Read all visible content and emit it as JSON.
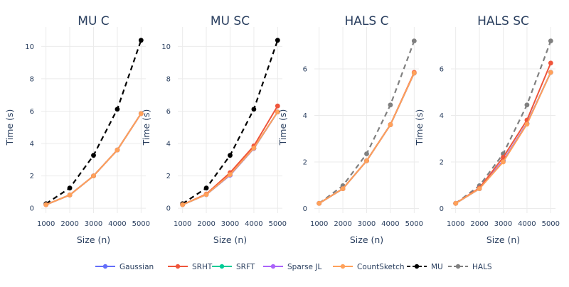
{
  "chart_data": [
    {
      "type": "line",
      "title": "MU C",
      "xlabel": "Size (n)",
      "ylabel": "Time (s)",
      "x": [
        1000,
        2000,
        3000,
        4000,
        5000
      ],
      "xticks": [
        "1000",
        "2000",
        "3000",
        "4000",
        "5000"
      ],
      "yticks": [
        "0",
        "2",
        "4",
        "6",
        "8",
        "10"
      ],
      "xlim": [
        800,
        5200
      ],
      "ylim": [
        -0.3,
        11.2
      ],
      "grid": true,
      "series": [
        {
          "name": "Gaussian",
          "values": [
            0.22,
            0.82,
            2.0,
            3.6,
            5.85
          ]
        },
        {
          "name": "SRHT",
          "values": [
            0.22,
            0.82,
            2.0,
            3.6,
            5.85
          ]
        },
        {
          "name": "SRFT",
          "values": [
            0.22,
            0.82,
            2.0,
            3.6,
            5.85
          ]
        },
        {
          "name": "Sparse JL",
          "values": [
            0.22,
            0.82,
            2.0,
            3.6,
            5.85
          ]
        },
        {
          "name": "CountSketch",
          "values": [
            0.22,
            0.82,
            2.0,
            3.6,
            5.85
          ]
        },
        {
          "name": "MU",
          "values": [
            0.28,
            1.25,
            3.27,
            6.12,
            10.38
          ]
        }
      ]
    },
    {
      "type": "line",
      "title": "MU SC",
      "xlabel": "Size (n)",
      "ylabel": "Time (s)",
      "x": [
        1000,
        2000,
        3000,
        4000,
        5000
      ],
      "xticks": [
        "1000",
        "2000",
        "3000",
        "4000",
        "5000"
      ],
      "yticks": [
        "0",
        "2",
        "4",
        "6",
        "8",
        "10"
      ],
      "xlim": [
        800,
        5200
      ],
      "ylim": [
        -0.3,
        11.2
      ],
      "grid": true,
      "series": [
        {
          "name": "Gaussian",
          "values": [
            0.22,
            0.85,
            2.05,
            3.7,
            5.95
          ]
        },
        {
          "name": "SRHT",
          "values": [
            0.22,
            0.88,
            2.2,
            3.85,
            6.32
          ]
        },
        {
          "name": "SRFT",
          "values": [
            0.22,
            0.85,
            2.05,
            3.7,
            5.95
          ]
        },
        {
          "name": "Sparse JL",
          "values": [
            0.22,
            0.85,
            2.05,
            3.7,
            5.95
          ]
        },
        {
          "name": "CountSketch",
          "values": [
            0.22,
            0.85,
            2.08,
            3.72,
            5.95
          ]
        },
        {
          "name": "MU",
          "values": [
            0.28,
            1.25,
            3.27,
            6.12,
            10.38
          ]
        }
      ]
    },
    {
      "type": "line",
      "title": "HALS C",
      "xlabel": "Size (n)",
      "ylabel": "Time (s)",
      "x": [
        1000,
        2000,
        3000,
        4000,
        5000
      ],
      "xticks": [
        "1000",
        "2000",
        "3000",
        "4000",
        "5000"
      ],
      "yticks": [
        "0",
        "2",
        "4",
        "6"
      ],
      "xlim": [
        800,
        5200
      ],
      "ylim": [
        -0.2,
        7.8
      ],
      "grid": true,
      "series": [
        {
          "name": "Gaussian",
          "values": [
            0.22,
            0.85,
            2.05,
            3.6,
            5.82
          ]
        },
        {
          "name": "SRHT",
          "values": [
            0.22,
            0.85,
            2.05,
            3.6,
            5.85
          ]
        },
        {
          "name": "SRFT",
          "values": [
            0.22,
            0.85,
            2.05,
            3.6,
            5.82
          ]
        },
        {
          "name": "Sparse JL",
          "values": [
            0.22,
            0.85,
            2.05,
            3.6,
            5.82
          ]
        },
        {
          "name": "CountSketch",
          "values": [
            0.22,
            0.85,
            2.05,
            3.6,
            5.82
          ]
        },
        {
          "name": "HALS",
          "values": [
            0.22,
            0.98,
            2.35,
            4.45,
            7.2
          ]
        }
      ]
    },
    {
      "type": "line",
      "title": "HALS SC",
      "xlabel": "Size (n)",
      "ylabel": "Time (s)",
      "x": [
        1000,
        2000,
        3000,
        4000,
        5000
      ],
      "xticks": [
        "1000",
        "2000",
        "3000",
        "4000",
        "5000"
      ],
      "yticks": [
        "0",
        "2",
        "4",
        "6"
      ],
      "xlim": [
        800,
        5200
      ],
      "ylim": [
        -0.2,
        7.8
      ],
      "grid": true,
      "series": [
        {
          "name": "Gaussian",
          "values": [
            0.22,
            0.85,
            2.05,
            3.65,
            5.85
          ]
        },
        {
          "name": "SRHT",
          "values": [
            0.22,
            0.88,
            2.2,
            3.8,
            6.25
          ]
        },
        {
          "name": "SRFT",
          "values": [
            0.22,
            0.85,
            2.05,
            3.65,
            5.85
          ]
        },
        {
          "name": "Sparse JL",
          "values": [
            0.22,
            0.85,
            2.05,
            3.65,
            5.85
          ]
        },
        {
          "name": "CountSketch",
          "values": [
            0.22,
            0.85,
            2.0,
            3.62,
            5.85
          ]
        },
        {
          "name": "HALS",
          "values": [
            0.22,
            0.98,
            2.35,
            4.45,
            7.2
          ]
        }
      ]
    }
  ],
  "legend": {
    "placement": "bottom",
    "items": [
      {
        "name": "Gaussian",
        "color": "#636efa",
        "dash": false
      },
      {
        "name": "SRHT",
        "color": "#ef553b",
        "dash": false
      },
      {
        "name": "SRFT",
        "color": "#00cc96",
        "dash": false
      },
      {
        "name": "Sparse JL",
        "color": "#ab63fa",
        "dash": false
      },
      {
        "name": "CountSketch",
        "color": "#ffa15a",
        "dash": false
      },
      {
        "name": "MU",
        "color": "#000000",
        "dash": true
      },
      {
        "name": "HALS",
        "color": "#808080",
        "dash": true
      }
    ]
  }
}
